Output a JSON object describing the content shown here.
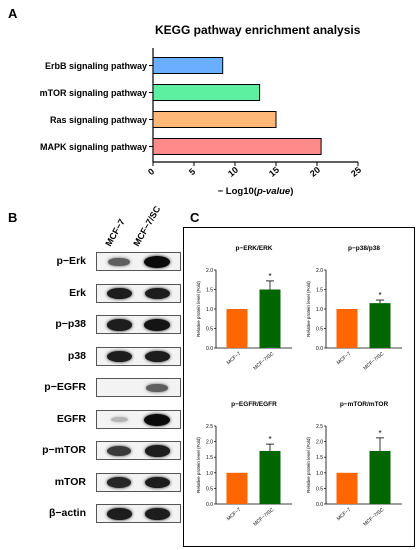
{
  "panels": {
    "a": "A",
    "b": "B",
    "c": "C"
  },
  "chart_data": [
    {
      "type": "bar",
      "orientation": "horizontal",
      "title": "KEGG pathway enrichment analysis",
      "xlabel_prefix": "− Log10(",
      "xlabel_italic": "p-value",
      "xlabel_suffix": ")",
      "categories": [
        "ErbB signaling pathway",
        "mTOR signaling pathway",
        "Ras signaling pathway",
        "MAPK signaling pathway"
      ],
      "values": [
        8.5,
        13,
        15,
        20.5
      ],
      "colors": [
        "#6aaeff",
        "#5cf0a0",
        "#ffb877",
        "#ff8a8a"
      ],
      "xlim": [
        0,
        25
      ],
      "xticks": [
        "0",
        "5",
        "10",
        "15",
        "20",
        "25"
      ]
    },
    {
      "type": "bar",
      "title": "p−ERK/ERK",
      "ylabel": "Relative protein level (Fold)",
      "categories": [
        "MCF−7",
        "MCF−7/SC"
      ],
      "values": [
        1.0,
        1.5
      ],
      "errors": [
        0,
        0.22
      ],
      "significance": [
        "",
        "*"
      ],
      "colors": [
        "#ff6600",
        "#006600"
      ],
      "ylim": [
        0,
        2.0
      ],
      "yticks": [
        "0.0",
        "0.5",
        "1.0",
        "1.5",
        "2.0"
      ]
    },
    {
      "type": "bar",
      "title": "p−p38/p38",
      "ylabel": "Relative protein level (Fold)",
      "categories": [
        "MCF−7",
        "MCF−7/SC"
      ],
      "values": [
        1.0,
        1.15
      ],
      "errors": [
        0,
        0.08
      ],
      "significance": [
        "",
        "*"
      ],
      "colors": [
        "#ff6600",
        "#006600"
      ],
      "ylim": [
        0,
        2.0
      ],
      "yticks": [
        "0.0",
        "0.5",
        "1.0",
        "1.5",
        "2.0"
      ]
    },
    {
      "type": "bar",
      "title": "p−EGFR/EGFR",
      "ylabel": "Relative protein level (Fold)",
      "categories": [
        "MCF−7",
        "MCF−7/SC"
      ],
      "values": [
        1.0,
        1.7
      ],
      "errors": [
        0,
        0.22
      ],
      "significance": [
        "",
        "*"
      ],
      "colors": [
        "#ff6600",
        "#006600"
      ],
      "ylim": [
        0,
        2.5
      ],
      "yticks": [
        "0.0",
        "0.5",
        "1.0",
        "1.5",
        "2.0",
        "2.5"
      ]
    },
    {
      "type": "bar",
      "title": "p−mTOR/mTOR",
      "ylabel": "Relative protein level (Fold)",
      "categories": [
        "MCF−7",
        "MCF−7/SC"
      ],
      "values": [
        1.0,
        1.7
      ],
      "errors": [
        0,
        0.42
      ],
      "significance": [
        "",
        "*"
      ],
      "colors": [
        "#ff6600",
        "#006600"
      ],
      "ylim": [
        0,
        2.5
      ],
      "yticks": [
        "0.0",
        "0.5",
        "1.0",
        "1.5",
        "2.0",
        "2.5"
      ]
    }
  ],
  "blot": {
    "columns": [
      "MCF−7",
      "MCF−7/SC"
    ],
    "rows": [
      {
        "label": "p−Erk",
        "bands": [
          0.55,
          1.0
        ]
      },
      {
        "label": "Erk",
        "bands": [
          0.9,
          0.9
        ]
      },
      {
        "label": "p−p38",
        "bands": [
          0.9,
          0.95
        ]
      },
      {
        "label": "p38",
        "bands": [
          0.9,
          0.9
        ]
      },
      {
        "label": "p−EGFR",
        "bands": [
          0.0,
          0.55
        ]
      },
      {
        "label": "EGFR",
        "bands": [
          0.1,
          1.0
        ]
      },
      {
        "label": "p−mTOR",
        "bands": [
          0.75,
          0.9
        ]
      },
      {
        "label": "mTOR",
        "bands": [
          0.85,
          0.9
        ]
      },
      {
        "label": "β−actin",
        "bands": [
          0.9,
          0.9
        ]
      }
    ]
  }
}
